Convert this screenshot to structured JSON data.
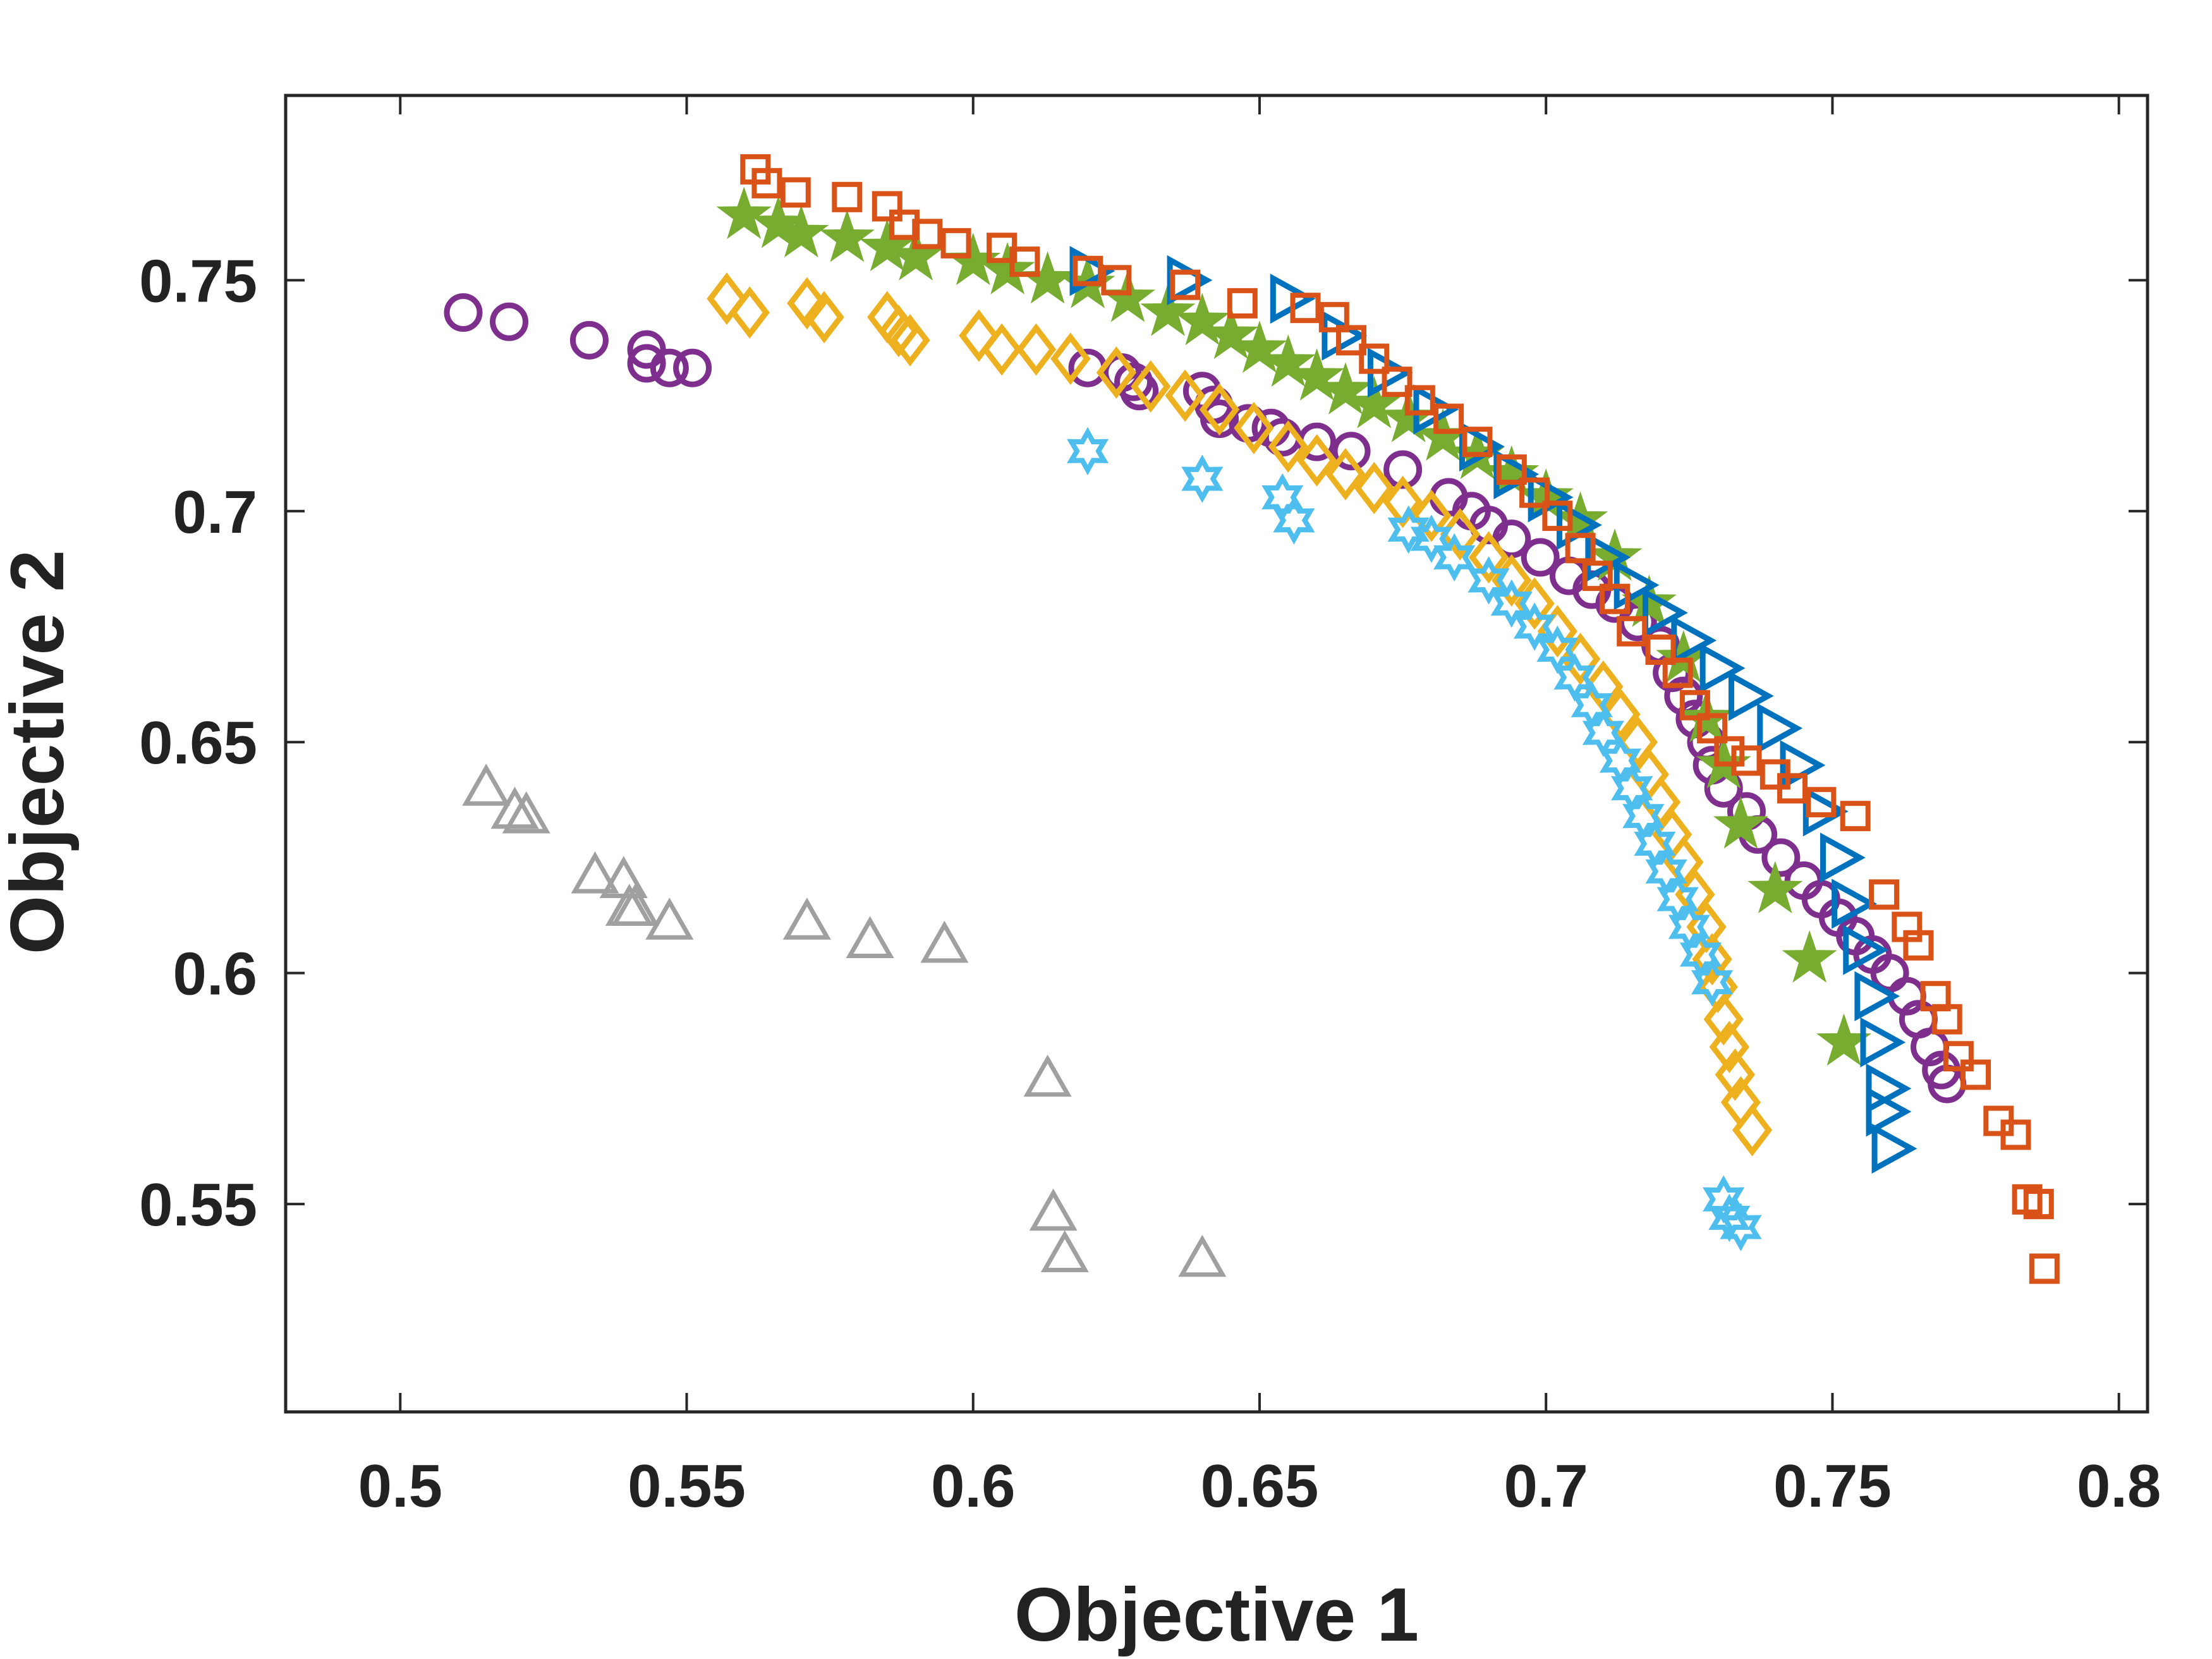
{
  "chart_data": {
    "type": "scatter",
    "title": "",
    "xlabel": "Objective 1",
    "ylabel": "Objective 2",
    "xlim": [
      0.48,
      0.805
    ],
    "ylim": [
      0.505,
      0.79
    ],
    "xticks": [
      0.5,
      0.55,
      0.6,
      0.65,
      0.7,
      0.75,
      0.8
    ],
    "xtick_labels": [
      "0.5",
      "0.55",
      "0.6",
      "0.65",
      "0.7",
      "0.75",
      "0.8"
    ],
    "yticks": [
      0.55,
      0.6,
      0.65,
      0.7,
      0.75
    ],
    "ytick_labels": [
      "0.55",
      "0.6",
      "0.65",
      "0.7",
      "0.75"
    ],
    "grid": false,
    "legend": "none",
    "series": [
      {
        "name": "gray-triangles",
        "marker": "triangle-up",
        "color": "#A0A0A0",
        "points": [
          [
            0.515,
            0.64
          ],
          [
            0.52,
            0.635
          ],
          [
            0.522,
            0.634
          ],
          [
            0.534,
            0.621
          ],
          [
            0.539,
            0.62
          ],
          [
            0.54,
            0.614
          ],
          [
            0.541,
            0.614
          ],
          [
            0.547,
            0.611
          ],
          [
            0.571,
            0.611
          ],
          [
            0.582,
            0.607
          ],
          [
            0.595,
            0.606
          ],
          [
            0.613,
            0.577
          ],
          [
            0.614,
            0.548
          ],
          [
            0.616,
            0.539
          ],
          [
            0.64,
            0.538
          ]
        ]
      },
      {
        "name": "purple-circles",
        "marker": "circle",
        "color": "#7E2F8E",
        "points": [
          [
            0.511,
            0.743
          ],
          [
            0.519,
            0.741
          ],
          [
            0.533,
            0.737
          ],
          [
            0.543,
            0.735
          ],
          [
            0.543,
            0.732
          ],
          [
            0.547,
            0.731
          ],
          [
            0.551,
            0.731
          ],
          [
            0.62,
            0.731
          ],
          [
            0.626,
            0.73
          ],
          [
            0.628,
            0.728
          ],
          [
            0.629,
            0.726
          ],
          [
            0.64,
            0.726
          ],
          [
            0.642,
            0.723
          ],
          [
            0.643,
            0.72
          ],
          [
            0.648,
            0.719
          ],
          [
            0.652,
            0.718
          ],
          [
            0.654,
            0.716
          ],
          [
            0.66,
            0.715
          ],
          [
            0.666,
            0.713
          ],
          [
            0.675,
            0.709
          ],
          [
            0.683,
            0.703
          ],
          [
            0.687,
            0.7
          ],
          [
            0.69,
            0.697
          ],
          [
            0.694,
            0.694
          ],
          [
            0.699,
            0.69
          ],
          [
            0.704,
            0.686
          ],
          [
            0.708,
            0.683
          ],
          [
            0.712,
            0.68
          ],
          [
            0.716,
            0.676
          ],
          [
            0.72,
            0.671
          ],
          [
            0.722,
            0.665
          ],
          [
            0.724,
            0.66
          ],
          [
            0.726,
            0.655
          ],
          [
            0.728,
            0.65
          ],
          [
            0.729,
            0.645
          ],
          [
            0.731,
            0.64
          ],
          [
            0.735,
            0.635
          ],
          [
            0.737,
            0.63
          ],
          [
            0.741,
            0.625
          ],
          [
            0.745,
            0.62
          ],
          [
            0.748,
            0.616
          ],
          [
            0.751,
            0.612
          ],
          [
            0.754,
            0.608
          ],
          [
            0.757,
            0.604
          ],
          [
            0.76,
            0.6
          ],
          [
            0.763,
            0.595
          ],
          [
            0.765,
            0.59
          ],
          [
            0.767,
            0.584
          ],
          [
            0.769,
            0.579
          ],
          [
            0.77,
            0.576
          ]
        ]
      },
      {
        "name": "orange-diamonds",
        "marker": "diamond",
        "color": "#EDB120",
        "points": [
          [
            0.557,
            0.746
          ],
          [
            0.561,
            0.743
          ],
          [
            0.571,
            0.745
          ],
          [
            0.574,
            0.742
          ],
          [
            0.585,
            0.742
          ],
          [
            0.587,
            0.739
          ],
          [
            0.589,
            0.737
          ],
          [
            0.601,
            0.738
          ],
          [
            0.605,
            0.735
          ],
          [
            0.611,
            0.735
          ],
          [
            0.617,
            0.733
          ],
          [
            0.625,
            0.73
          ],
          [
            0.631,
            0.727
          ],
          [
            0.637,
            0.725
          ],
          [
            0.643,
            0.722
          ],
          [
            0.649,
            0.718
          ],
          [
            0.655,
            0.714
          ],
          [
            0.66,
            0.711
          ],
          [
            0.665,
            0.708
          ],
          [
            0.67,
            0.705
          ],
          [
            0.675,
            0.702
          ],
          [
            0.68,
            0.699
          ],
          [
            0.685,
            0.695
          ],
          [
            0.69,
            0.69
          ],
          [
            0.694,
            0.685
          ],
          [
            0.698,
            0.68
          ],
          [
            0.702,
            0.674
          ],
          [
            0.706,
            0.668
          ],
          [
            0.71,
            0.662
          ],
          [
            0.713,
            0.656
          ],
          [
            0.716,
            0.65
          ],
          [
            0.718,
            0.643
          ],
          [
            0.72,
            0.637
          ],
          [
            0.722,
            0.63
          ],
          [
            0.724,
            0.624
          ],
          [
            0.726,
            0.617
          ],
          [
            0.728,
            0.61
          ],
          [
            0.729,
            0.603
          ],
          [
            0.73,
            0.597
          ],
          [
            0.731,
            0.59
          ],
          [
            0.732,
            0.584
          ],
          [
            0.733,
            0.578
          ],
          [
            0.734,
            0.572
          ],
          [
            0.736,
            0.566
          ]
        ]
      },
      {
        "name": "cyan-hexagrams",
        "marker": "hexagram",
        "color": "#4DBEEE",
        "points": [
          [
            0.62,
            0.713
          ],
          [
            0.64,
            0.707
          ],
          [
            0.654,
            0.703
          ],
          [
            0.656,
            0.698
          ],
          [
            0.676,
            0.696
          ],
          [
            0.68,
            0.694
          ],
          [
            0.684,
            0.69
          ],
          [
            0.69,
            0.685
          ],
          [
            0.694,
            0.68
          ],
          [
            0.698,
            0.675
          ],
          [
            0.702,
            0.67
          ],
          [
            0.705,
            0.664
          ],
          [
            0.708,
            0.658
          ],
          [
            0.71,
            0.652
          ],
          [
            0.713,
            0.646
          ],
          [
            0.715,
            0.64
          ],
          [
            0.717,
            0.634
          ],
          [
            0.719,
            0.628
          ],
          [
            0.721,
            0.622
          ],
          [
            0.723,
            0.616
          ],
          [
            0.725,
            0.61
          ],
          [
            0.727,
            0.604
          ],
          [
            0.729,
            0.598
          ],
          [
            0.731,
            0.551
          ],
          [
            0.732,
            0.547
          ],
          [
            0.734,
            0.545
          ]
        ]
      },
      {
        "name": "green-stars",
        "marker": "pentagram",
        "color": "#77AC30",
        "points": [
          [
            0.56,
            0.764
          ],
          [
            0.566,
            0.762
          ],
          [
            0.57,
            0.76
          ],
          [
            0.578,
            0.759
          ],
          [
            0.585,
            0.757
          ],
          [
            0.59,
            0.755
          ],
          [
            0.6,
            0.754
          ],
          [
            0.606,
            0.752
          ],
          [
            0.613,
            0.75
          ],
          [
            0.62,
            0.749
          ],
          [
            0.627,
            0.746
          ],
          [
            0.634,
            0.743
          ],
          [
            0.64,
            0.741
          ],
          [
            0.645,
            0.738
          ],
          [
            0.65,
            0.735
          ],
          [
            0.655,
            0.732
          ],
          [
            0.66,
            0.729
          ],
          [
            0.665,
            0.726
          ],
          [
            0.67,
            0.723
          ],
          [
            0.676,
            0.72
          ],
          [
            0.682,
            0.716
          ],
          [
            0.688,
            0.712
          ],
          [
            0.694,
            0.708
          ],
          [
            0.7,
            0.703
          ],
          [
            0.706,
            0.698
          ],
          [
            0.712,
            0.69
          ],
          [
            0.718,
            0.68
          ],
          [
            0.724,
            0.668
          ],
          [
            0.728,
            0.655
          ],
          [
            0.731,
            0.645
          ],
          [
            0.734,
            0.632
          ],
          [
            0.74,
            0.618
          ],
          [
            0.746,
            0.603
          ],
          [
            0.752,
            0.585
          ]
        ]
      },
      {
        "name": "blue-right-triangles",
        "marker": "triangle-right",
        "color": "#0072BD",
        "points": [
          [
            0.62,
            0.752
          ],
          [
            0.637,
            0.75
          ],
          [
            0.655,
            0.746
          ],
          [
            0.664,
            0.738
          ],
          [
            0.672,
            0.73
          ],
          [
            0.68,
            0.722
          ],
          [
            0.688,
            0.714
          ],
          [
            0.694,
            0.708
          ],
          [
            0.7,
            0.703
          ],
          [
            0.705,
            0.697
          ],
          [
            0.71,
            0.69
          ],
          [
            0.715,
            0.684
          ],
          [
            0.72,
            0.678
          ],
          [
            0.725,
            0.672
          ],
          [
            0.73,
            0.666
          ],
          [
            0.735,
            0.66
          ],
          [
            0.74,
            0.653
          ],
          [
            0.744,
            0.645
          ],
          [
            0.748,
            0.635
          ],
          [
            0.751,
            0.625
          ],
          [
            0.753,
            0.615
          ],
          [
            0.755,
            0.605
          ],
          [
            0.757,
            0.595
          ],
          [
            0.758,
            0.585
          ],
          [
            0.759,
            0.575
          ],
          [
            0.759,
            0.57
          ],
          [
            0.76,
            0.562
          ]
        ]
      },
      {
        "name": "red-squares",
        "marker": "square",
        "color": "#D95319",
        "points": [
          [
            0.562,
            0.774
          ],
          [
            0.564,
            0.771
          ],
          [
            0.569,
            0.769
          ],
          [
            0.578,
            0.768
          ],
          [
            0.585,
            0.766
          ],
          [
            0.588,
            0.762
          ],
          [
            0.592,
            0.76
          ],
          [
            0.597,
            0.758
          ],
          [
            0.605,
            0.757
          ],
          [
            0.609,
            0.754
          ],
          [
            0.62,
            0.752
          ],
          [
            0.625,
            0.75
          ],
          [
            0.637,
            0.749
          ],
          [
            0.647,
            0.745
          ],
          [
            0.658,
            0.744
          ],
          [
            0.663,
            0.742
          ],
          [
            0.666,
            0.737
          ],
          [
            0.67,
            0.733
          ],
          [
            0.674,
            0.728
          ],
          [
            0.678,
            0.724
          ],
          [
            0.683,
            0.72
          ],
          [
            0.688,
            0.715
          ],
          [
            0.694,
            0.709
          ],
          [
            0.698,
            0.704
          ],
          [
            0.702,
            0.699
          ],
          [
            0.706,
            0.692
          ],
          [
            0.709,
            0.686
          ],
          [
            0.712,
            0.681
          ],
          [
            0.715,
            0.674
          ],
          [
            0.72,
            0.67
          ],
          [
            0.723,
            0.665
          ],
          [
            0.726,
            0.658
          ],
          [
            0.729,
            0.653
          ],
          [
            0.732,
            0.648
          ],
          [
            0.735,
            0.646
          ],
          [
            0.74,
            0.643
          ],
          [
            0.743,
            0.64
          ],
          [
            0.748,
            0.637
          ],
          [
            0.754,
            0.634
          ],
          [
            0.759,
            0.617
          ],
          [
            0.763,
            0.61
          ],
          [
            0.765,
            0.606
          ],
          [
            0.768,
            0.595
          ],
          [
            0.77,
            0.59
          ],
          [
            0.772,
            0.582
          ],
          [
            0.775,
            0.578
          ],
          [
            0.779,
            0.568
          ],
          [
            0.782,
            0.565
          ],
          [
            0.784,
            0.551
          ],
          [
            0.786,
            0.55
          ],
          [
            0.787,
            0.536
          ]
        ]
      }
    ]
  }
}
